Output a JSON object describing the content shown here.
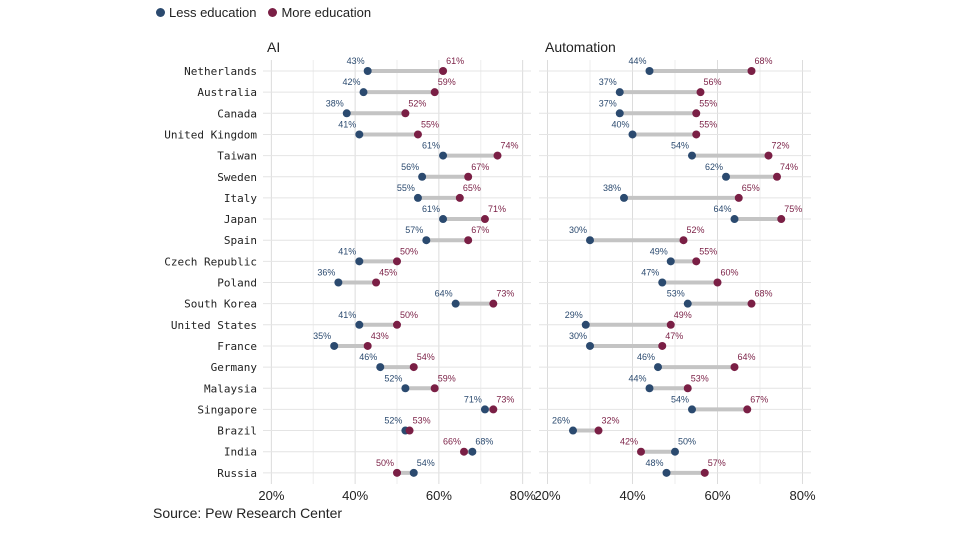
{
  "legend": {
    "less_label": "Less education",
    "more_label": "More education",
    "less_color": "#2b4a6f",
    "more_color": "#7a1f45"
  },
  "source": "Source: Pew Research Center",
  "chart_data": {
    "type": "dumbbell",
    "x_ticks": [
      "20%",
      "40%",
      "60%",
      "80%"
    ],
    "xlim": [
      18,
      82
    ],
    "categories": [
      "Netherlands",
      "Australia",
      "Canada",
      "United Kingdom",
      "Taiwan",
      "Sweden",
      "Italy",
      "Japan",
      "Spain",
      "Czech Republic",
      "Poland",
      "South Korea",
      "United States",
      "France",
      "Germany",
      "Malaysia",
      "Singapore",
      "Brazil",
      "India",
      "Russia"
    ],
    "facets": [
      {
        "title": "AI",
        "series": [
          {
            "name": "Less education",
            "values": [
              43,
              42,
              38,
              41,
              61,
              56,
              55,
              61,
              57,
              41,
              36,
              64,
              41,
              35,
              46,
              52,
              71,
              52,
              68,
              54
            ]
          },
          {
            "name": "More education",
            "values": [
              61,
              59,
              52,
              55,
              74,
              67,
              65,
              71,
              67,
              50,
              45,
              73,
              50,
              43,
              54,
              59,
              73,
              53,
              66,
              50
            ]
          }
        ]
      },
      {
        "title": "Automation",
        "series": [
          {
            "name": "Less education",
            "values": [
              44,
              37,
              37,
              40,
              54,
              62,
              38,
              64,
              30,
              49,
              47,
              53,
              29,
              30,
              46,
              44,
              54,
              26,
              50,
              48
            ]
          },
          {
            "name": "More education",
            "values": [
              68,
              56,
              55,
              55,
              72,
              74,
              65,
              75,
              52,
              55,
              60,
              68,
              49,
              47,
              64,
              53,
              67,
              32,
              42,
              57
            ]
          }
        ]
      }
    ]
  }
}
